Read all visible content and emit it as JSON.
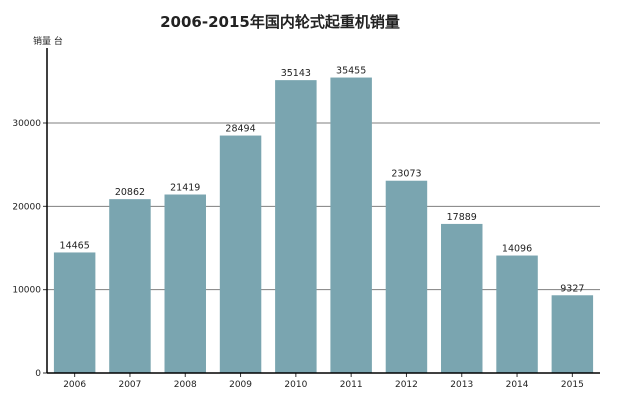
{
  "chart_data": {
    "type": "bar",
    "title": "2006-2015年国内轮式起重机销量",
    "ylabel": "销量 台",
    "xlabel": "",
    "categories": [
      "2006",
      "2007",
      "2008",
      "2009",
      "2010",
      "2011",
      "2012",
      "2013",
      "2014",
      "2015"
    ],
    "values": [
      14465,
      20862,
      21419,
      28494,
      35143,
      35455,
      23073,
      17889,
      14096,
      9327
    ],
    "ylim": [
      0,
      39000
    ],
    "yticks": [
      0,
      10000,
      20000,
      30000
    ],
    "grid": true,
    "bar_color": "#7AA5B0",
    "legend": "none"
  }
}
